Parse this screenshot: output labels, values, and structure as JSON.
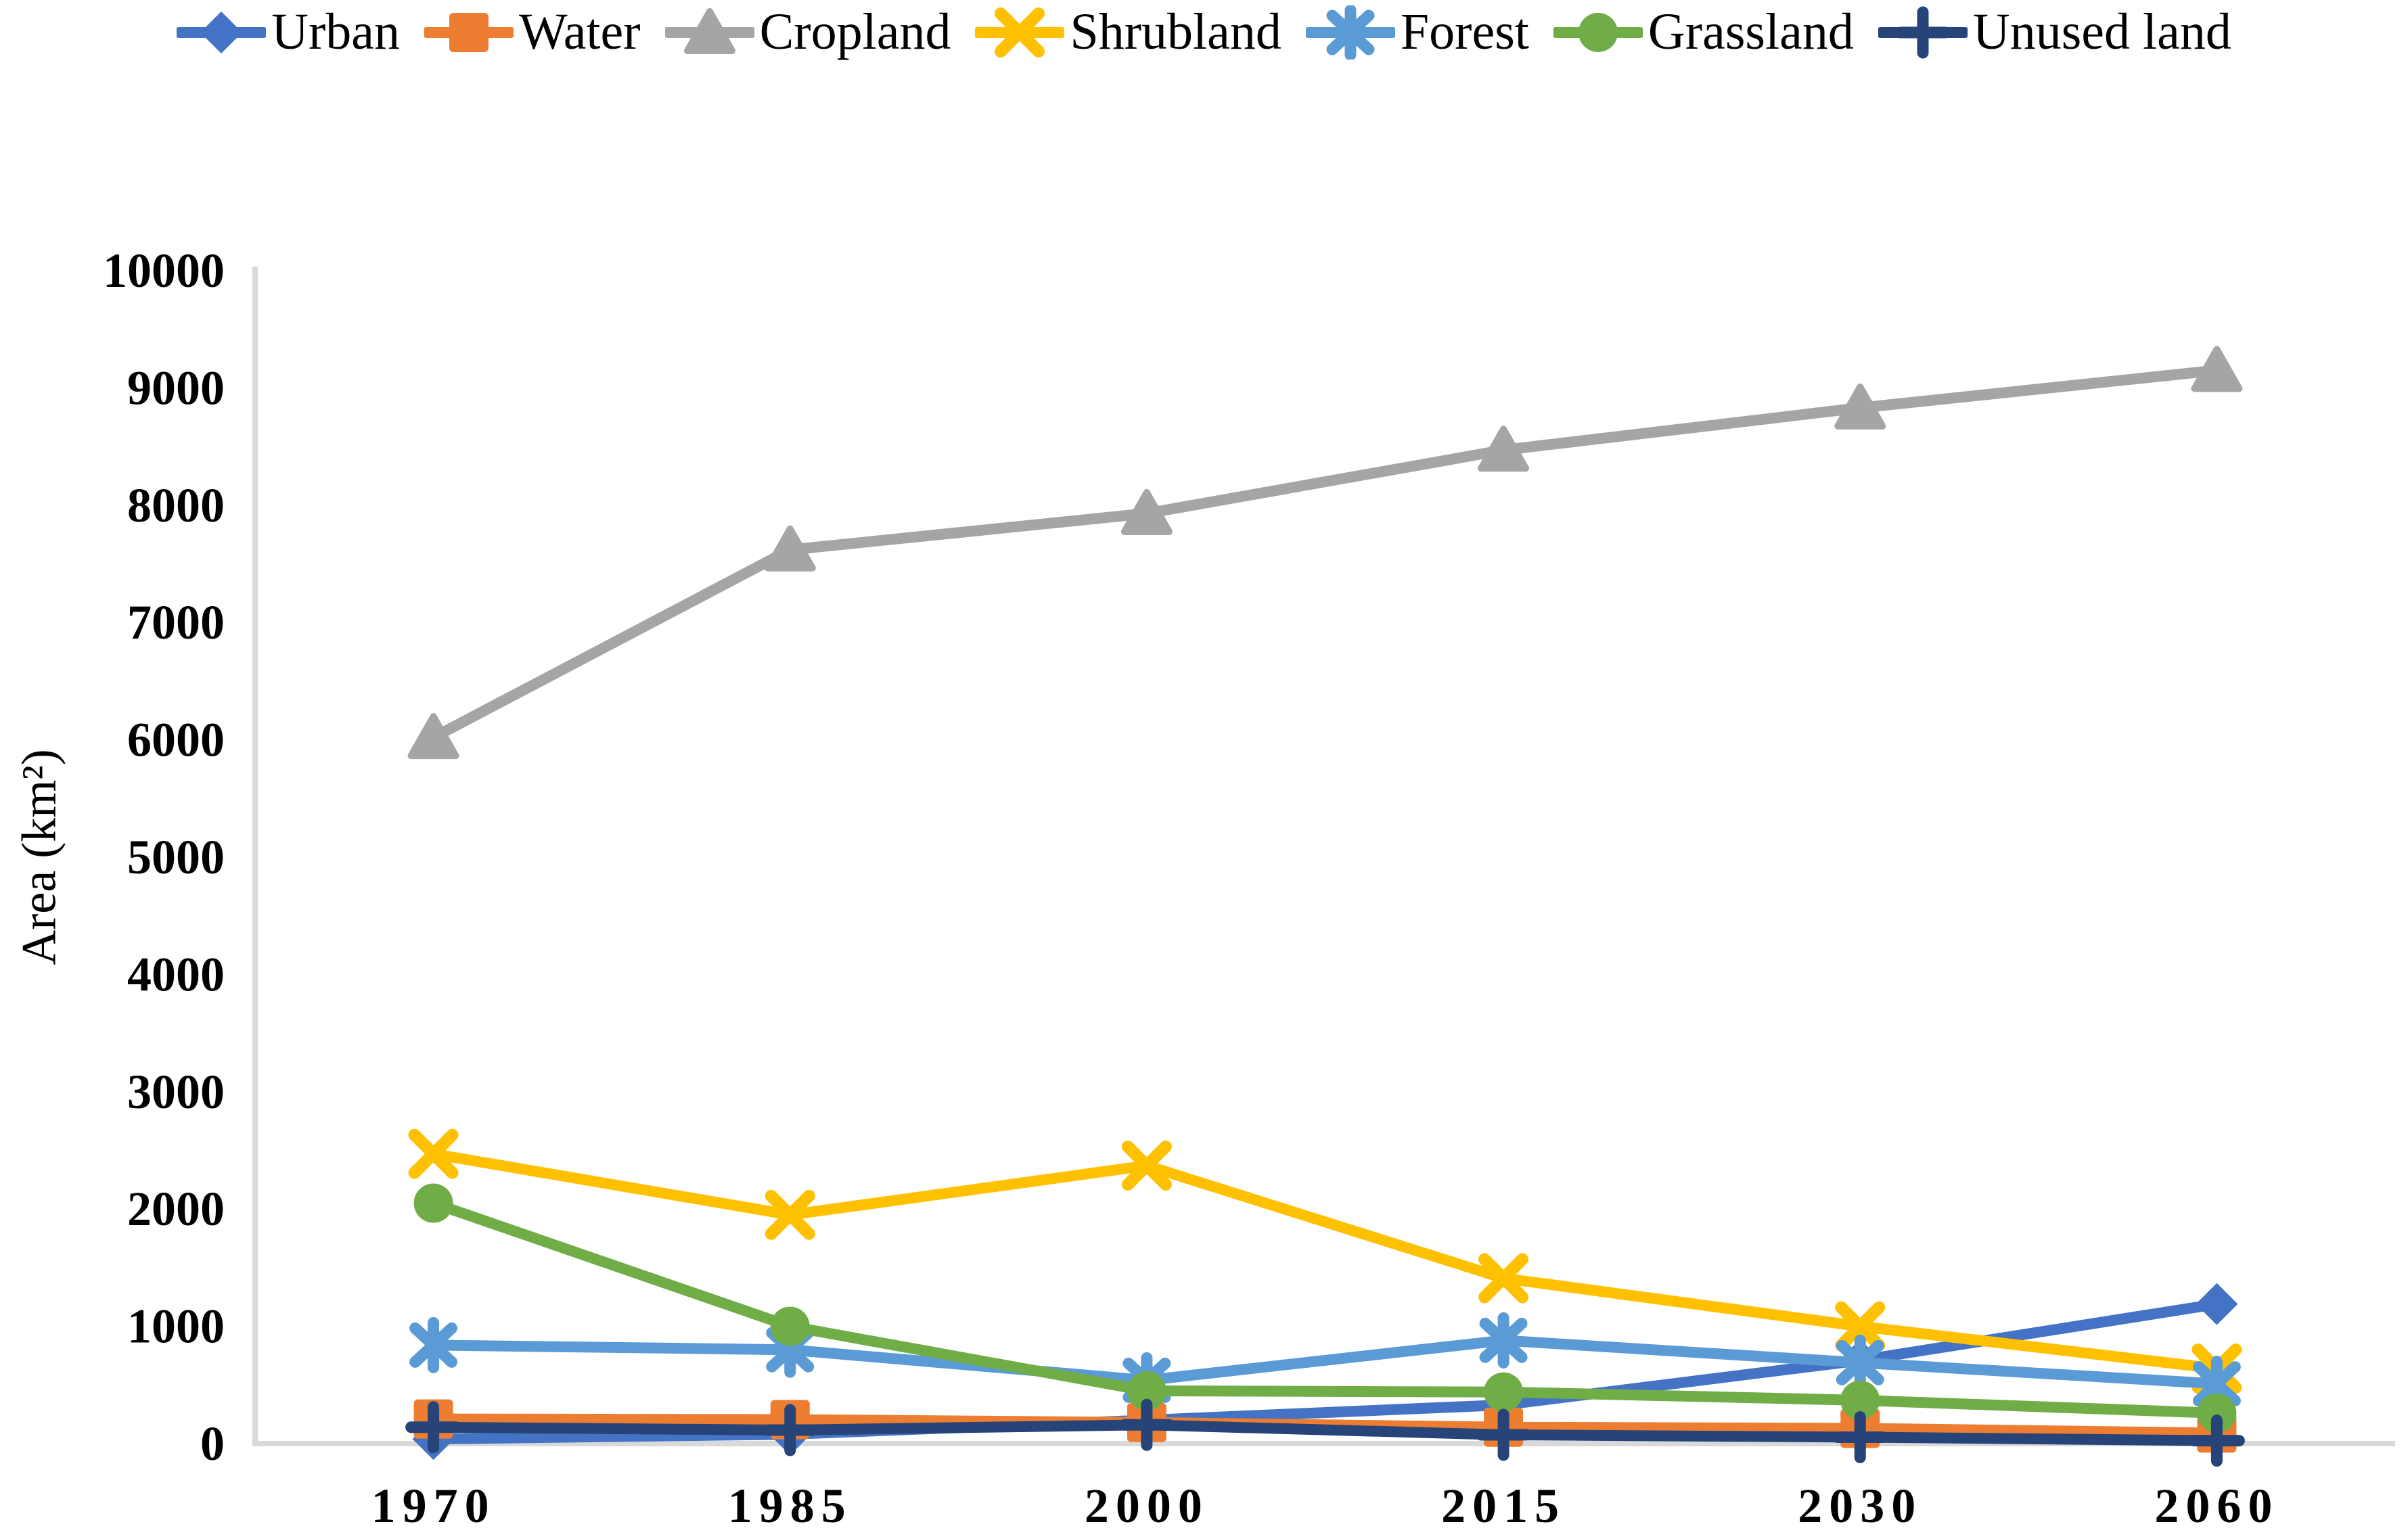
{
  "page": {
    "background": "#ffffff"
  },
  "chart_data": {
    "type": "line",
    "title": "",
    "xlabel": "",
    "ylabel": "Area (km²)",
    "categories": [
      "1970",
      "1985",
      "2000",
      "2015",
      "2030",
      "2060"
    ],
    "y_ticks": [
      "0",
      "1000",
      "2000",
      "3000",
      "4000",
      "5000",
      "6000",
      "7000",
      "8000",
      "9000",
      "10000"
    ],
    "ylim": [
      0,
      10000
    ],
    "ytick_step": 1000,
    "grid": false,
    "legend_position": "top",
    "axis_color": "#d9d9d9",
    "text_color": "#000000",
    "series": [
      {
        "name": "Urban",
        "color": "#4472C4",
        "marker": "diamond",
        "values": [
          40,
          80,
          200,
          330,
          710,
          1190
        ]
      },
      {
        "name": "Water",
        "color": "#ED7D31",
        "marker": "square",
        "values": [
          210,
          205,
          180,
          140,
          130,
          90
        ]
      },
      {
        "name": "Cropland",
        "color": "#A5A5A5",
        "marker": "triangle",
        "values": [
          6020,
          7620,
          7930,
          8470,
          8830,
          9150
        ]
      },
      {
        "name": "Shrubland",
        "color": "#FFC000",
        "marker": "x",
        "values": [
          2470,
          1950,
          2370,
          1410,
          1000,
          640
        ]
      },
      {
        "name": "Forest",
        "color": "#5B9BD5",
        "marker": "asterisk",
        "values": [
          840,
          800,
          540,
          880,
          690,
          510
        ]
      },
      {
        "name": "Grassland",
        "color": "#70AD47",
        "marker": "circle",
        "values": [
          2050,
          1000,
          450,
          440,
          370,
          260
        ]
      },
      {
        "name": "Unused land",
        "color": "#264478",
        "marker": "plus",
        "values": [
          140,
          115,
          160,
          75,
          55,
          25
        ]
      }
    ]
  }
}
